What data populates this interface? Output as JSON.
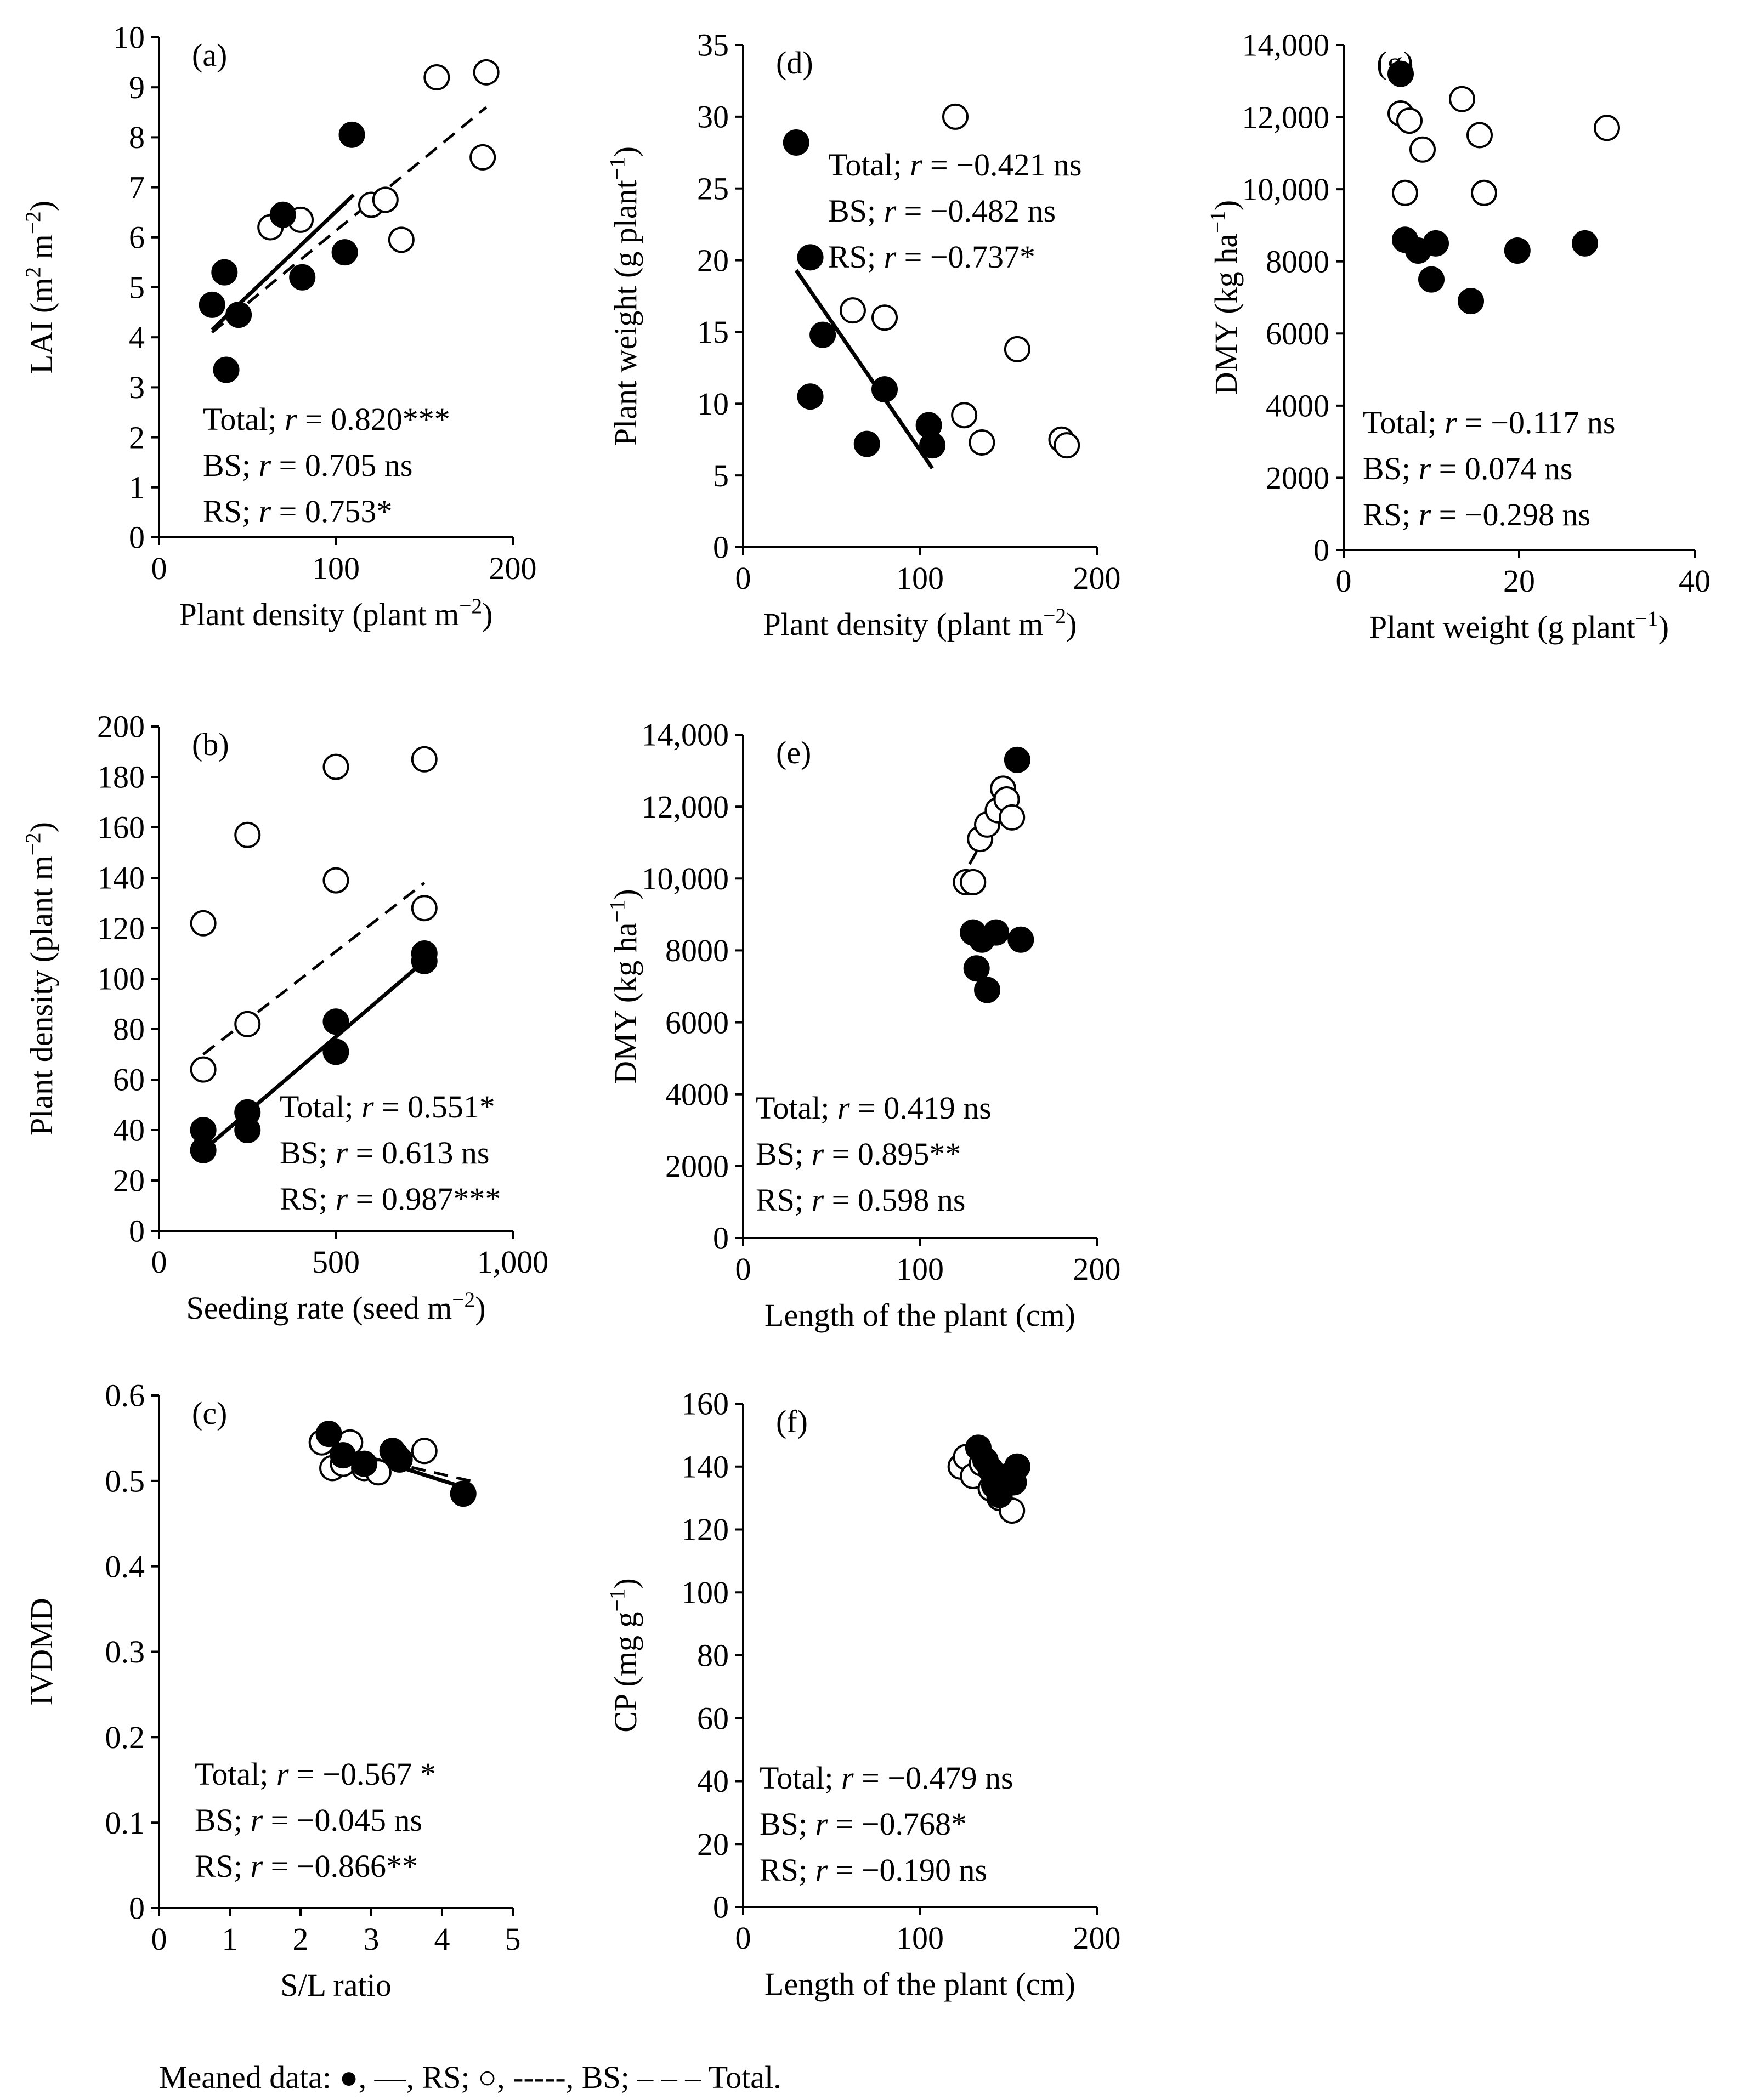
{
  "footer": {
    "lead": "Meaned data: ",
    "filled_marker": "●",
    "after_filled": ", —, RS; ",
    "open_marker": "○",
    "after_open": ", -----, BS; – – – Total."
  },
  "chart_data": [
    {
      "id": "a",
      "type": "scatter",
      "panel_label": "(a)",
      "xlabel": "Plant density (plant m⁻²)",
      "ylabel": "LAI (m² m⁻²)",
      "xlim": [
        0,
        200
      ],
      "ylim": [
        0,
        10
      ],
      "xticks": [
        0,
        100,
        200
      ],
      "xtick_labels": [
        "0",
        "100",
        "200"
      ],
      "yticks": [
        0,
        1,
        2,
        3,
        4,
        5,
        6,
        7,
        8,
        9,
        10
      ],
      "ytick_labels": [
        "0",
        "1",
        "2",
        "3",
        "4",
        "5",
        "6",
        "7",
        "8",
        "9",
        "10"
      ],
      "series": [
        {
          "name": "RS",
          "marker": "filled",
          "points": [
            [
              30,
              4.65
            ],
            [
              37,
              5.3
            ],
            [
              38,
              3.35
            ],
            [
              45,
              4.45
            ],
            [
              70,
              6.45
            ],
            [
              81,
              5.2
            ],
            [
              105,
              5.7
            ],
            [
              109,
              8.05
            ]
          ]
        },
        {
          "name": "BS",
          "marker": "open",
          "points": [
            [
              63,
              6.2
            ],
            [
              80,
              6.35
            ],
            [
              120,
              6.65
            ],
            [
              128,
              6.75
            ],
            [
              137,
              5.95
            ],
            [
              157,
              9.2
            ],
            [
              183,
              7.6
            ],
            [
              185,
              9.3
            ]
          ]
        }
      ],
      "lines": [
        {
          "name": "RS",
          "style": "solid",
          "x": [
            30,
            110
          ],
          "y": [
            4.15,
            6.85
          ]
        },
        {
          "name": "Total",
          "style": "dashed",
          "x": [
            30,
            185
          ],
          "y": [
            4.1,
            8.6
          ]
        }
      ],
      "annotation_lines": [
        "Total; r = 0.820***",
        "BS; r = 0.705 ns",
        "RS; r = 0.753*"
      ],
      "annotation_pos": "bottom-left"
    },
    {
      "id": "b",
      "type": "scatter",
      "panel_label": "(b)",
      "xlabel": "Seeding rate (seed m⁻²)",
      "ylabel": "Plant density (plant m⁻²)",
      "xlim": [
        0,
        1000
      ],
      "ylim": [
        0,
        200
      ],
      "xticks": [
        0,
        500,
        1000
      ],
      "xtick_labels": [
        "0",
        "500",
        "1,000"
      ],
      "yticks": [
        0,
        20,
        40,
        60,
        80,
        100,
        120,
        140,
        160,
        180,
        200
      ],
      "ytick_labels": [
        "0",
        "20",
        "40",
        "60",
        "80",
        "100",
        "120",
        "140",
        "160",
        "180",
        "200"
      ],
      "series": [
        {
          "name": "RS",
          "marker": "filled",
          "points": [
            [
              125,
              32
            ],
            [
              125,
              40
            ],
            [
              250,
              40
            ],
            [
              250,
              47
            ],
            [
              500,
              71
            ],
            [
              500,
              83
            ],
            [
              750,
              107
            ],
            [
              750,
              110
            ]
          ]
        },
        {
          "name": "BS",
          "marker": "open",
          "points": [
            [
              125,
              64
            ],
            [
              125,
              122
            ],
            [
              250,
              82
            ],
            [
              250,
              157
            ],
            [
              500,
              139
            ],
            [
              500,
              184
            ],
            [
              750,
              128
            ],
            [
              750,
              187
            ]
          ]
        }
      ],
      "lines": [
        {
          "name": "RS",
          "style": "solid",
          "x": [
            125,
            750
          ],
          "y": [
            32,
            107
          ]
        },
        {
          "name": "BS",
          "style": "dashed",
          "x": [
            125,
            750
          ],
          "y": [
            70,
            138
          ]
        }
      ],
      "annotation_lines": [
        "Total; r = 0.551*",
        "BS; r = 0.613 ns",
        "RS; r = 0.987***"
      ],
      "annotation_pos": "bottom-right"
    },
    {
      "id": "c",
      "type": "scatter",
      "panel_label": "(c)",
      "xlabel": "S/L ratio",
      "ylabel": "IVDMD",
      "xlim": [
        0,
        5
      ],
      "ylim": [
        0,
        0.6
      ],
      "xticks": [
        0,
        1,
        2,
        3,
        4,
        5
      ],
      "xtick_labels": [
        "0",
        "1",
        "2",
        "3",
        "4",
        "5"
      ],
      "yticks": [
        0,
        0.1,
        0.2,
        0.3,
        0.4,
        0.5,
        0.6
      ],
      "ytick_labels": [
        "0",
        "0.1",
        "0.2",
        "0.3",
        "0.4",
        "0.5",
        "0.6"
      ],
      "series": [
        {
          "name": "RS",
          "marker": "filled",
          "points": [
            [
              2.4,
              0.555
            ],
            [
              2.6,
              0.53
            ],
            [
              2.9,
              0.52
            ],
            [
              3.3,
              0.535
            ],
            [
              3.4,
              0.525
            ],
            [
              4.3,
              0.485
            ]
          ]
        },
        {
          "name": "BS",
          "marker": "open",
          "points": [
            [
              2.3,
              0.545
            ],
            [
              2.45,
              0.515
            ],
            [
              2.6,
              0.52
            ],
            [
              2.7,
              0.545
            ],
            [
              2.9,
              0.515
            ],
            [
              3.1,
              0.51
            ],
            [
              3.35,
              0.53
            ],
            [
              3.75,
              0.535
            ]
          ]
        }
      ],
      "lines": [
        {
          "name": "RS",
          "style": "solid",
          "x": [
            2.3,
            4.4
          ],
          "y": [
            0.545,
            0.49
          ]
        },
        {
          "name": "Total",
          "style": "dashed",
          "x": [
            2.3,
            4.4
          ],
          "y": [
            0.54,
            0.5
          ]
        }
      ],
      "annotation_lines": [
        "Total; r = −0.567 *",
        "BS; r = −0.045 ns",
        "RS; r = −0.866**"
      ],
      "annotation_pos": "bottom-left"
    },
    {
      "id": "d",
      "type": "scatter",
      "panel_label": "(d)",
      "xlabel": "Plant density (plant m⁻²)",
      "ylabel": "Plant weight (g plant⁻¹)",
      "xlim": [
        0,
        200
      ],
      "ylim": [
        0,
        35
      ],
      "xticks": [
        0,
        100,
        200
      ],
      "xtick_labels": [
        "0",
        "100",
        "200"
      ],
      "yticks": [
        0,
        5,
        10,
        15,
        20,
        25,
        30,
        35
      ],
      "ytick_labels": [
        "0",
        "5",
        "10",
        "15",
        "20",
        "25",
        "30",
        "35"
      ],
      "series": [
        {
          "name": "RS",
          "marker": "filled",
          "points": [
            [
              30,
              28.2
            ],
            [
              38,
              20.2
            ],
            [
              38,
              10.5
            ],
            [
              45,
              14.8
            ],
            [
              70,
              7.2
            ],
            [
              80,
              11
            ],
            [
              105,
              8.5
            ],
            [
              107,
              7.1
            ]
          ]
        },
        {
          "name": "BS",
          "marker": "open",
          "points": [
            [
              62,
              16.5
            ],
            [
              80,
              16
            ],
            [
              120,
              30
            ],
            [
              125,
              9.2
            ],
            [
              135,
              7.3
            ],
            [
              155,
              13.8
            ],
            [
              180,
              7.5
            ],
            [
              183,
              7.1
            ]
          ]
        }
      ],
      "lines": [
        {
          "name": "RS",
          "style": "solid",
          "x": [
            30,
            107
          ],
          "y": [
            19.3,
            5.5
          ]
        }
      ],
      "annotation_lines": [
        "Total; r = −0.421 ns",
        "BS; r = −0.482 ns",
        "RS; r = −0.737*"
      ],
      "annotation_pos": "top-center"
    },
    {
      "id": "e",
      "type": "scatter",
      "panel_label": "(e)",
      "xlabel": "Length of the plant (cm)",
      "ylabel": "DMY (kg ha⁻¹)",
      "xlim": [
        0,
        200
      ],
      "ylim": [
        0,
        14000
      ],
      "xticks": [
        0,
        100,
        200
      ],
      "xtick_labels": [
        "0",
        "100",
        "200"
      ],
      "yticks": [
        0,
        2000,
        4000,
        6000,
        8000,
        10000,
        12000,
        14000
      ],
      "ytick_labels": [
        "0",
        "2000",
        "4000",
        "6000",
        "8000",
        "10,000",
        "12,000",
        "14,000"
      ],
      "series": [
        {
          "name": "RS",
          "marker": "filled",
          "points": [
            [
              130,
              8500
            ],
            [
              132,
              7500
            ],
            [
              135,
              8300
            ],
            [
              138,
              6900
            ],
            [
              143,
              8500
            ],
            [
              155,
              13300
            ],
            [
              157,
              8300
            ]
          ]
        },
        {
          "name": "BS",
          "marker": "open",
          "points": [
            [
              126,
              9900
            ],
            [
              130,
              9900
            ],
            [
              134,
              11100
            ],
            [
              138,
              11500
            ],
            [
              144,
              11900
            ],
            [
              147,
              12500
            ],
            [
              149,
              12200
            ],
            [
              152,
              11700
            ]
          ]
        }
      ],
      "lines": [
        {
          "name": "BS",
          "style": "dashed",
          "x": [
            128,
            150
          ],
          "y": [
            10400,
            12300
          ]
        }
      ],
      "annotation_lines": [
        "Total; r = 0.419 ns",
        "BS; r = 0.895**",
        "RS; r = 0.598 ns"
      ],
      "annotation_pos": "bottom-left"
    },
    {
      "id": "f",
      "type": "scatter",
      "panel_label": "(f)",
      "xlabel": "Length of the plant (cm)",
      "ylabel": "CP (mg g⁻¹)",
      "xlim": [
        0,
        200
      ],
      "ylim": [
        0,
        160
      ],
      "xticks": [
        0,
        100,
        200
      ],
      "xtick_labels": [
        "0",
        "100",
        "200"
      ],
      "yticks": [
        0,
        20,
        40,
        60,
        80,
        100,
        120,
        140,
        160
      ],
      "ytick_labels": [
        "0",
        "20",
        "40",
        "60",
        "80",
        "100",
        "120",
        "140",
        "160"
      ],
      "series": [
        {
          "name": "RS",
          "marker": "filled",
          "points": [
            [
              133,
              146
            ],
            [
              137,
              142
            ],
            [
              140,
              139
            ],
            [
              142,
              134
            ],
            [
              145,
              131
            ],
            [
              150,
              137
            ],
            [
              153,
              135
            ],
            [
              155,
              140
            ]
          ]
        },
        {
          "name": "BS",
          "marker": "open",
          "points": [
            [
              123,
              140
            ],
            [
              126,
              143
            ],
            [
              130,
              137
            ],
            [
              135,
              141
            ],
            [
              140,
              133
            ],
            [
              145,
              130
            ],
            [
              148,
              136
            ],
            [
              152,
              126
            ]
          ]
        }
      ],
      "lines": [
        {
          "name": "BS",
          "style": "dashed",
          "x": [
            123,
            155
          ],
          "y": [
            142,
            130
          ]
        }
      ],
      "annotation_lines": [
        "Total; r = −0.479 ns",
        "BS; r = −0.768*",
        "RS; r = −0.190 ns"
      ],
      "annotation_pos": "bottom-left"
    },
    {
      "id": "g",
      "type": "scatter",
      "panel_label": "(g)",
      "xlabel": "Plant weight (g plant⁻¹)",
      "ylabel": "DMY (kg ha⁻¹)",
      "xlim": [
        0,
        40
      ],
      "ylim": [
        0,
        14000
      ],
      "xticks": [
        0,
        20,
        40
      ],
      "xtick_labels": [
        "0",
        "20",
        "40"
      ],
      "yticks": [
        0,
        2000,
        4000,
        6000,
        8000,
        10000,
        12000,
        14000
      ],
      "ytick_labels": [
        "0",
        "2000",
        "4000",
        "6000",
        "8000",
        "10,000",
        "12,000",
        "14,000"
      ],
      "series": [
        {
          "name": "RS",
          "marker": "filled",
          "points": [
            [
              6.5,
              13200
            ],
            [
              7,
              8600
            ],
            [
              8.5,
              8300
            ],
            [
              10,
              7500
            ],
            [
              10.5,
              8500
            ],
            [
              14.5,
              6900
            ],
            [
              19.8,
              8300
            ],
            [
              27.5,
              8500
            ]
          ]
        },
        {
          "name": "BS",
          "marker": "open",
          "points": [
            [
              6.5,
              12100
            ],
            [
              7,
              9900
            ],
            [
              7.5,
              11900
            ],
            [
              9,
              11100
            ],
            [
              13.5,
              12500
            ],
            [
              15.5,
              11500
            ],
            [
              16,
              9900
            ],
            [
              30,
              11700
            ]
          ]
        }
      ],
      "lines": [],
      "annotation_lines": [
        "Total; r = −0.117 ns",
        "BS; r = 0.074 ns",
        "RS; r = −0.298 ns"
      ],
      "annotation_pos": "bottom-left"
    }
  ]
}
